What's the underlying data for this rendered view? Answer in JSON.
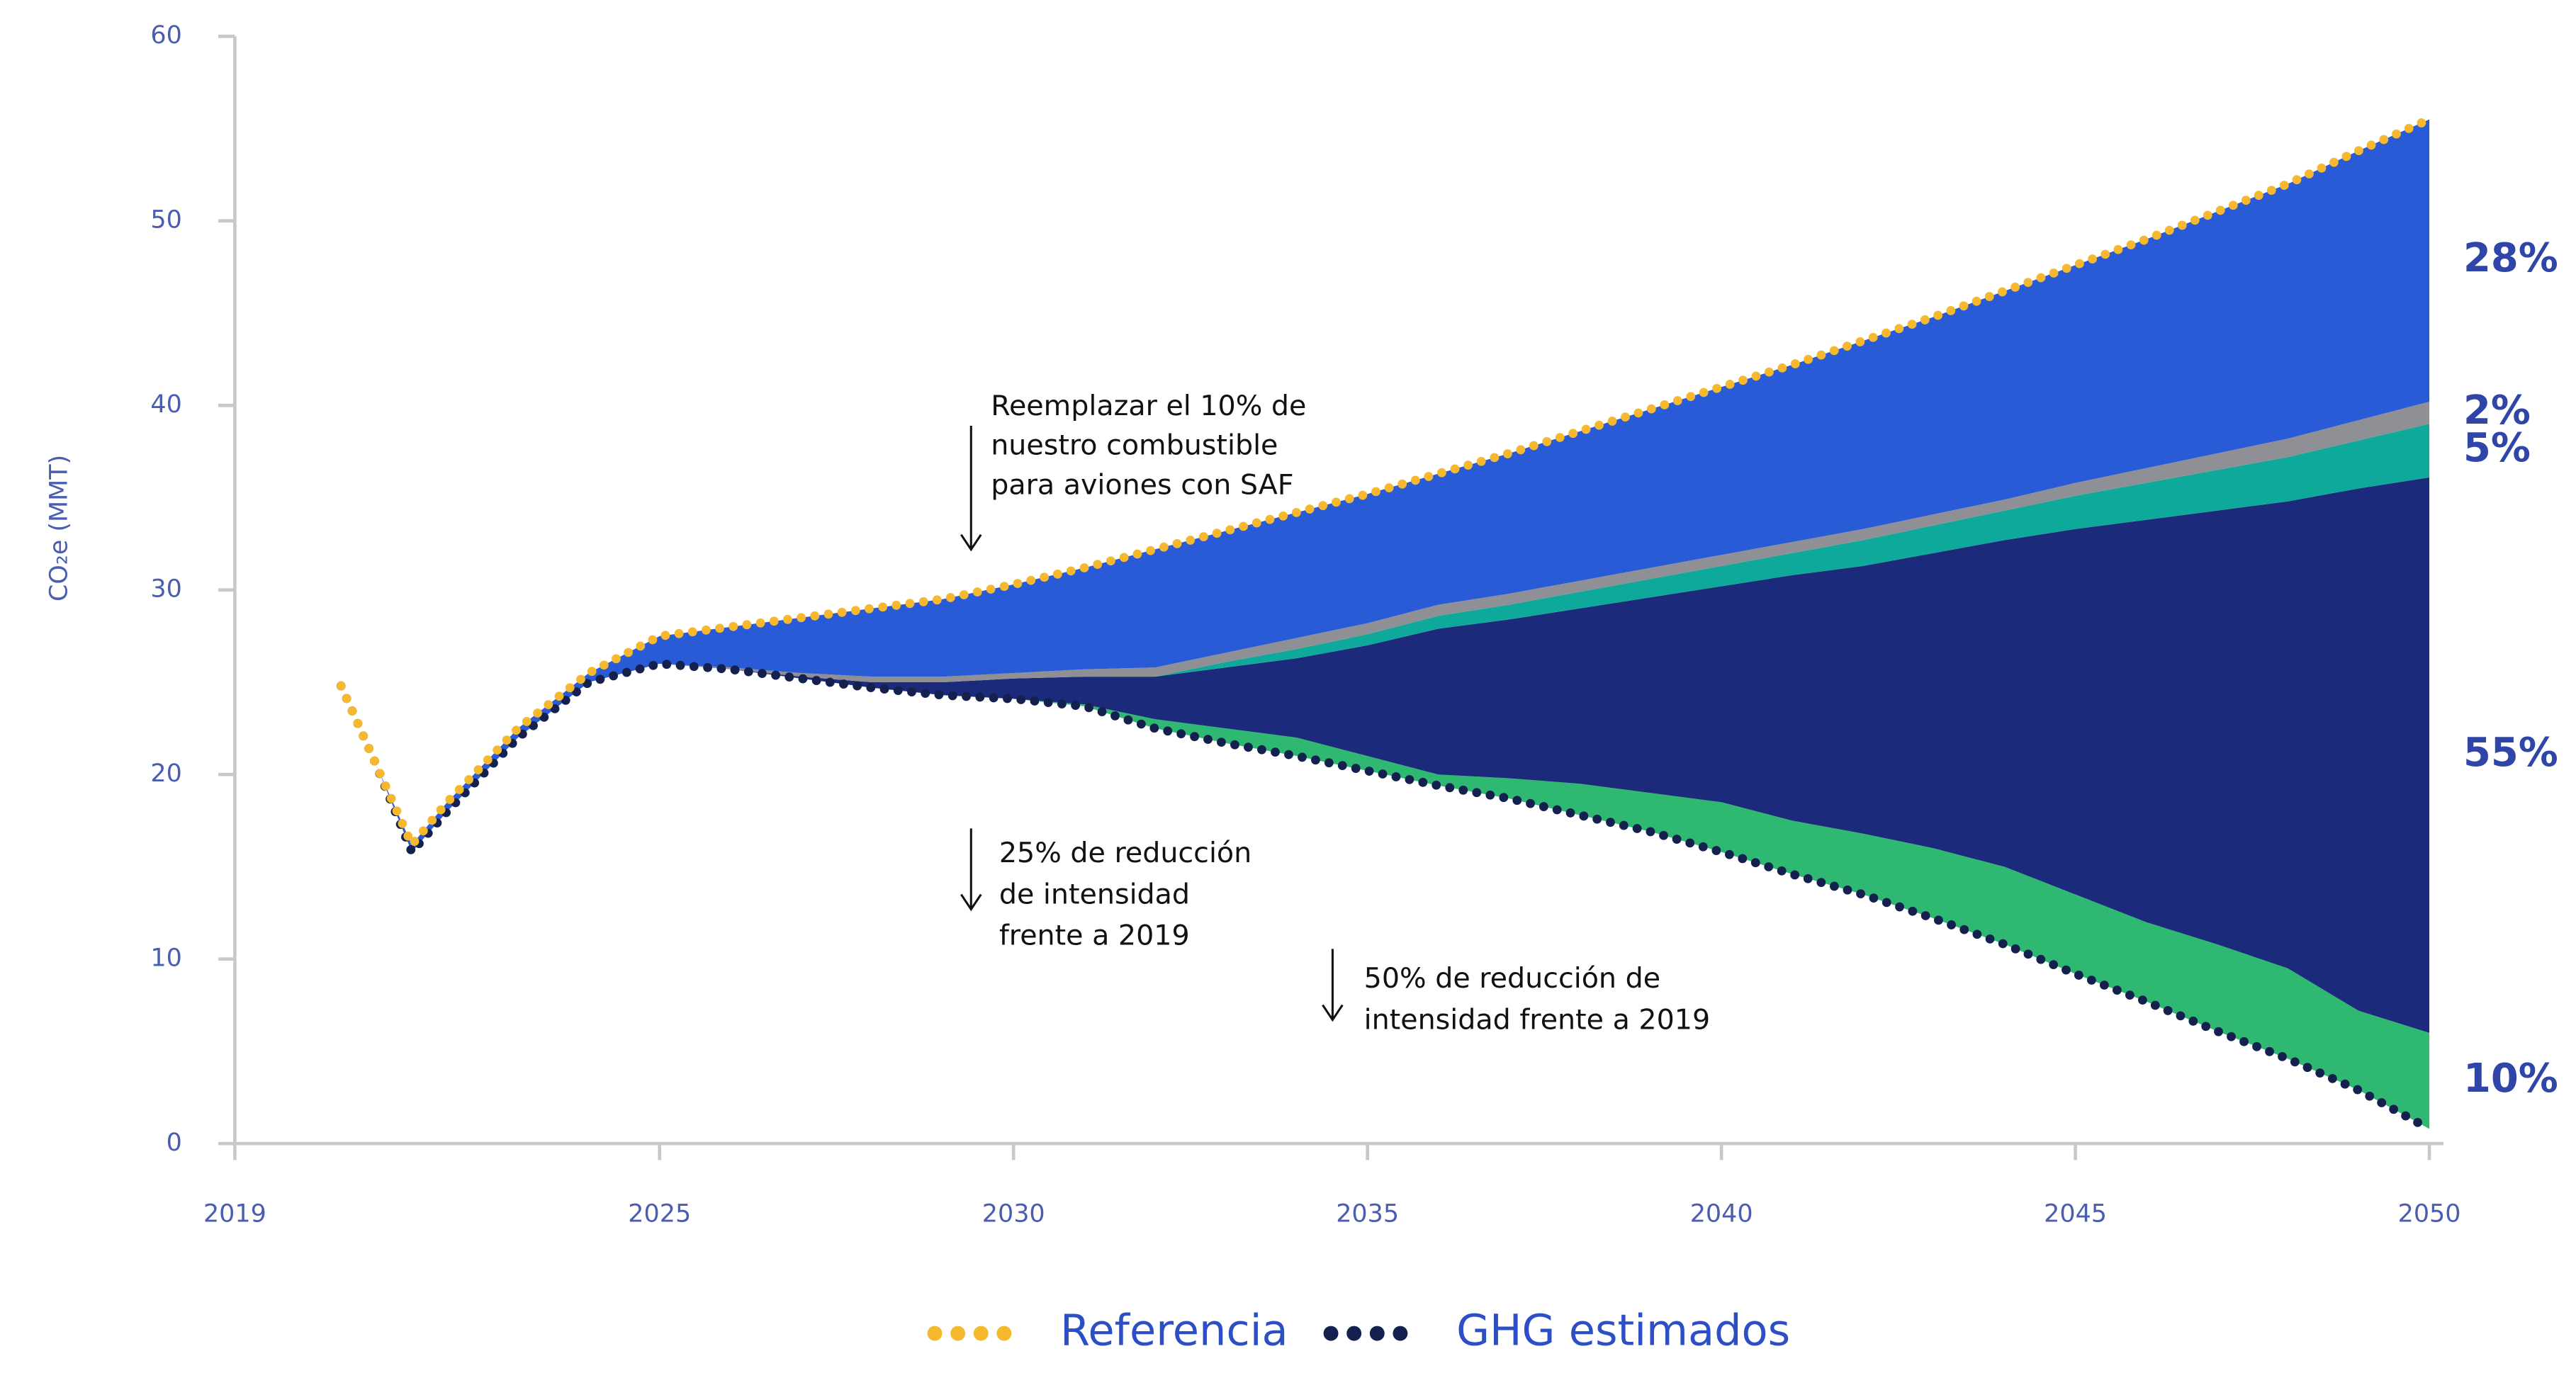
{
  "chart_data": {
    "type": "stacked_area",
    "y_label": "CO₂e (MMT)",
    "x": [
      2020.5,
      2021,
      2021.5,
      2022,
      2023,
      2024,
      2025,
      2026,
      2027,
      2028,
      2029,
      2030,
      2031,
      2032,
      2033,
      2034,
      2035,
      2036,
      2037,
      2038,
      2039,
      2040,
      2041,
      2042,
      2043,
      2044,
      2045,
      2046,
      2047,
      2048,
      2049,
      2050
    ],
    "xlim": [
      2019,
      2050.2
    ],
    "xticks": [
      2019,
      2025,
      2030,
      2035,
      2040,
      2045,
      2050
    ],
    "ylim": [
      0,
      60
    ],
    "yticks": [
      0,
      10,
      20,
      30,
      40,
      50,
      60
    ],
    "series": [
      {
        "name": "Referencia",
        "color": "#f5b82e",
        "values": [
          24.8,
          20.5,
          16.2,
          18.5,
          22.5,
          25.5,
          27.5,
          28.0,
          28.5,
          29.0,
          29.5,
          30.3,
          31.2,
          32.2,
          33.2,
          34.2,
          35.2,
          36.3,
          37.4,
          38.6,
          39.8,
          41.0,
          42.2,
          43.5,
          44.8,
          46.2,
          47.6,
          49.0,
          50.5,
          52.0,
          53.8,
          55.5
        ]
      },
      {
        "name": "GHG estimados",
        "color": "#14214f",
        "values": [
          24.8,
          20.5,
          15.8,
          18.0,
          22.0,
          25.0,
          26.0,
          25.7,
          25.2,
          24.7,
          24.3,
          24.1,
          23.7,
          22.5,
          21.7,
          21.0,
          20.2,
          19.4,
          18.7,
          17.8,
          16.9,
          15.8,
          14.6,
          13.5,
          12.2,
          10.8,
          9.2,
          7.7,
          6.1,
          4.6,
          2.9,
          0.8
        ]
      }
    ],
    "areas": [
      {
        "color": "#2eb872",
        "label": "10%",
        "values": [
          0,
          0,
          0,
          0,
          0,
          0,
          0,
          0,
          0,
          0,
          0,
          0,
          0.1,
          0.5,
          0.8,
          1.0,
          0.8,
          0.6,
          1.1,
          1.7,
          2.1,
          2.7,
          2.9,
          3.3,
          3.8,
          4.2,
          4.3,
          4.3,
          4.7,
          4.9,
          4.3,
          5.2
        ]
      },
      {
        "color": "#1b2a7a",
        "label": "55%",
        "values": [
          0,
          0,
          0,
          0,
          0,
          0,
          0,
          0,
          0.1,
          0.3,
          0.7,
          1.1,
          1.5,
          2.3,
          3.3,
          4.3,
          6.0,
          7.9,
          8.6,
          9.5,
          10.6,
          11.7,
          13.3,
          14.5,
          16.0,
          17.7,
          19.8,
          21.8,
          23.5,
          25.3,
          28.3,
          30.1
        ]
      },
      {
        "color": "#0fa99c",
        "label": "5%",
        "values": [
          0,
          0,
          0,
          0,
          0,
          0,
          0,
          0,
          0,
          0,
          0,
          0,
          0,
          0,
          0.3,
          0.5,
          0.6,
          0.7,
          0.8,
          0.9,
          1.0,
          1.1,
          1.2,
          1.4,
          1.5,
          1.6,
          1.8,
          2.0,
          2.2,
          2.4,
          2.6,
          2.9
        ]
      },
      {
        "color": "#8e9096",
        "label": "2%",
        "values": [
          0,
          0,
          0,
          0,
          0,
          0,
          0,
          0.1,
          0.2,
          0.3,
          0.3,
          0.3,
          0.4,
          0.5,
          0.5,
          0.6,
          0.6,
          0.6,
          0.6,
          0.6,
          0.6,
          0.6,
          0.6,
          0.6,
          0.6,
          0.6,
          0.7,
          0.8,
          0.9,
          1.0,
          1.1,
          1.2
        ]
      },
      {
        "color": "#2a5bd7",
        "label": "28%",
        "values": [
          0,
          0,
          0.4,
          0.5,
          0.5,
          0.5,
          1.5,
          2.2,
          3.0,
          3.7,
          4.2,
          4.8,
          5.5,
          6.4,
          6.6,
          6.8,
          7.0,
          7.1,
          7.6,
          8.1,
          8.6,
          9.1,
          9.6,
          10.2,
          10.7,
          11.3,
          11.8,
          12.4,
          13.1,
          13.8,
          14.6,
          15.3
        ]
      }
    ],
    "annotations": [
      {
        "lines": [
          "Reemplazar el 10% de",
          "nuestro combustible",
          "para aviones con SAF"
        ]
      },
      {
        "lines": [
          "25% de reducción",
          "de intensidad",
          "frente a 2019"
        ]
      },
      {
        "lines": [
          "50% de reducción de",
          "intensidad frente a 2019"
        ]
      }
    ]
  }
}
